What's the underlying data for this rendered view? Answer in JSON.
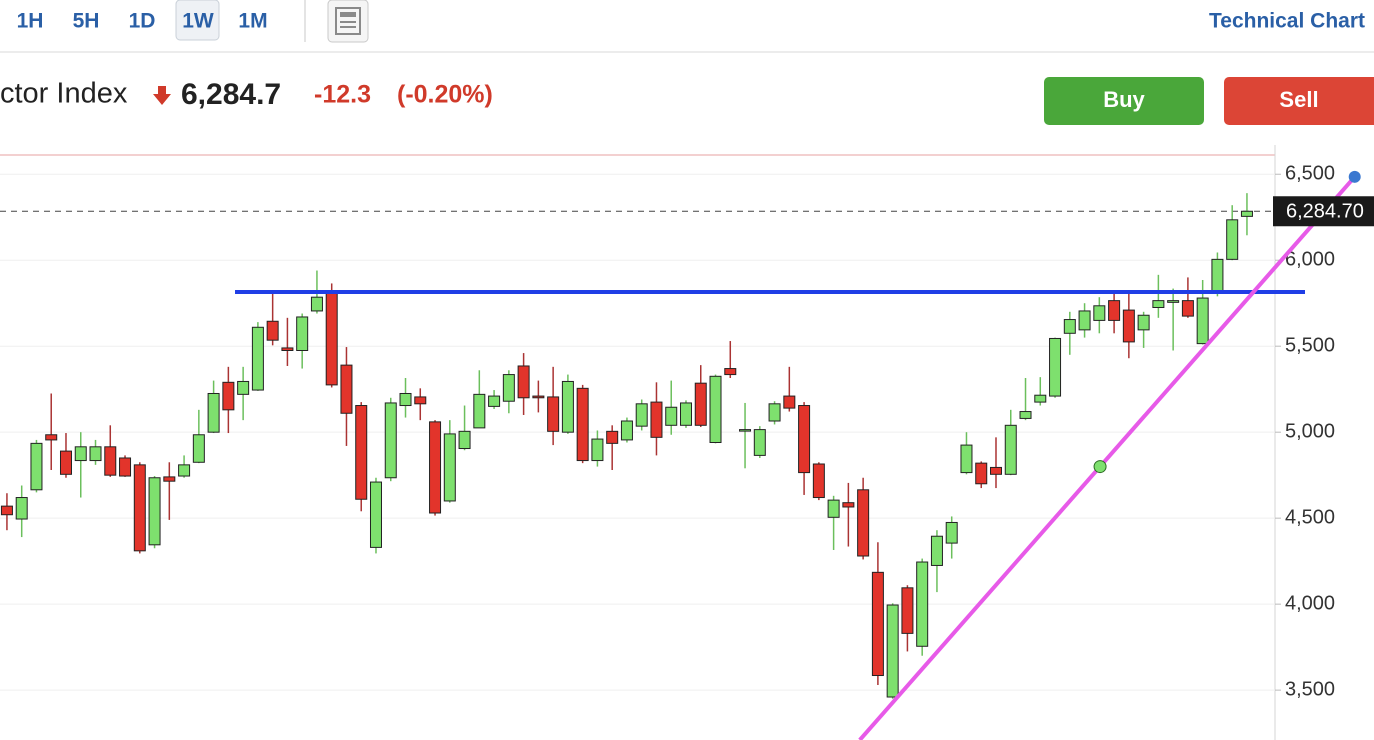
{
  "toolbar": {
    "tabs": [
      "1H",
      "5H",
      "1D",
      "1W",
      "1M"
    ],
    "active": "1W",
    "link": "Technical Chart"
  },
  "quote": {
    "name": "ctor Index",
    "price": "6,284.7",
    "change": "-12.3",
    "change_pct": "(-0.20%)"
  },
  "buttons": {
    "buy": "Buy",
    "sell": "Sell"
  },
  "chart_data": {
    "type": "candlestick",
    "up_color": "#7ee06e",
    "down_color": "#e2342b",
    "xlim": [
      -0.47,
      85.9
    ],
    "ylim": [
      3210,
      6670
    ],
    "yticks": [
      {
        "value": 3500,
        "label": "3,500"
      },
      {
        "value": 4000,
        "label": "4,000"
      },
      {
        "value": 4500,
        "label": "4,500"
      },
      {
        "value": 5000,
        "label": "5,000"
      },
      {
        "value": 5500,
        "label": "5,500"
      },
      {
        "value": 6000,
        "label": "6,000"
      },
      {
        "value": 6500,
        "label": "6,500"
      }
    ],
    "grid": true,
    "last_price": {
      "value": 6284.7,
      "label": "6,284.70"
    },
    "hline": {
      "value": 5815,
      "from": 15.45,
      "color": "#1f3ee6"
    },
    "trendline": {
      "color": "#e75ae8",
      "points": [
        {
          "x": 74.05,
          "y": 4800,
          "color": "#7ee06e"
        },
        {
          "x": 91.3,
          "y": 6485,
          "color": "#3a78d0"
        }
      ]
    },
    "ohlc": [
      [
        4570,
        4645,
        4430,
        4520
      ],
      [
        4495,
        4690,
        4390,
        4620
      ],
      [
        4665,
        4955,
        4650,
        4935
      ],
      [
        4985,
        5225,
        4780,
        4955
      ],
      [
        4890,
        4995,
        4735,
        4755
      ],
      [
        4835,
        5000,
        4620,
        4915
      ],
      [
        4835,
        4955,
        4810,
        4915
      ],
      [
        4915,
        5040,
        4740,
        4750
      ],
      [
        4850,
        4865,
        4740,
        4745
      ],
      [
        4810,
        4825,
        4295,
        4310
      ],
      [
        4345,
        4745,
        4325,
        4735
      ],
      [
        4740,
        4825,
        4490,
        4715
      ],
      [
        4745,
        4865,
        4735,
        4810
      ],
      [
        4825,
        5130,
        4820,
        4985
      ],
      [
        5000,
        5300,
        4995,
        5225
      ],
      [
        5290,
        5380,
        4995,
        5130
      ],
      [
        5220,
        5380,
        5070,
        5295
      ],
      [
        5245,
        5640,
        5240,
        5610
      ],
      [
        5645,
        5810,
        5505,
        5535
      ],
      [
        5490,
        5665,
        5385,
        5475
      ],
      [
        5475,
        5690,
        5370,
        5670
      ],
      [
        5705,
        5940,
        5690,
        5785
      ],
      [
        5815,
        5865,
        5260,
        5275
      ],
      [
        5390,
        5495,
        4920,
        5110
      ],
      [
        5155,
        5175,
        4540,
        4610
      ],
      [
        4330,
        4735,
        4295,
        4710
      ],
      [
        4735,
        5200,
        4715,
        5170
      ],
      [
        5155,
        5315,
        5085,
        5225
      ],
      [
        5205,
        5255,
        5070,
        5165
      ],
      [
        5060,
        5070,
        4515,
        4530
      ],
      [
        4600,
        5070,
        4590,
        4990
      ],
      [
        4905,
        5155,
        4895,
        5005
      ],
      [
        5025,
        5360,
        5025,
        5220
      ],
      [
        5150,
        5245,
        5135,
        5210
      ],
      [
        5180,
        5360,
        5110,
        5335
      ],
      [
        5385,
        5460,
        5100,
        5200
      ],
      [
        5210,
        5300,
        5115,
        5200
      ],
      [
        5205,
        5380,
        4925,
        5005
      ],
      [
        5000,
        5335,
        4990,
        5295
      ],
      [
        5255,
        5275,
        4820,
        4835
      ],
      [
        4835,
        5010,
        4800,
        4960
      ],
      [
        5005,
        5040,
        4780,
        4935
      ],
      [
        4955,
        5085,
        4940,
        5065
      ],
      [
        5035,
        5190,
        5010,
        5165
      ],
      [
        5175,
        5290,
        4865,
        4970
      ],
      [
        5040,
        5300,
        4985,
        5145
      ],
      [
        5040,
        5185,
        5025,
        5170
      ],
      [
        5285,
        5390,
        5030,
        5040
      ],
      [
        4940,
        5335,
        4935,
        5325
      ],
      [
        5370,
        5530,
        5315,
        5335
      ],
      [
        5010,
        5170,
        4790,
        5015
      ],
      [
        4865,
        5035,
        4850,
        5015
      ],
      [
        5065,
        5180,
        5045,
        5165
      ],
      [
        5210,
        5380,
        5120,
        5140
      ],
      [
        5155,
        5175,
        4635,
        4765
      ],
      [
        4815,
        4825,
        4605,
        4620
      ],
      [
        4505,
        4630,
        4315,
        4605
      ],
      [
        4590,
        4705,
        4335,
        4565
      ],
      [
        4665,
        4735,
        4260,
        4280
      ],
      [
        4185,
        4360,
        3530,
        3585
      ],
      [
        3460,
        4005,
        3450,
        3995
      ],
      [
        4095,
        4110,
        3725,
        3830
      ],
      [
        3755,
        4265,
        3700,
        4245
      ],
      [
        4225,
        4430,
        4070,
        4395
      ],
      [
        4355,
        4510,
        4265,
        4475
      ],
      [
        4765,
        5000,
        4755,
        4925
      ],
      [
        4820,
        4830,
        4675,
        4700
      ],
      [
        4795,
        4970,
        4675,
        4755
      ],
      [
        4755,
        5130,
        4750,
        5040
      ],
      [
        5080,
        5315,
        5070,
        5120
      ],
      [
        5175,
        5320,
        5155,
        5215
      ],
      [
        5210,
        5550,
        5200,
        5545
      ],
      [
        5575,
        5700,
        5450,
        5655
      ],
      [
        5595,
        5750,
        5550,
        5705
      ],
      [
        5650,
        5785,
        5575,
        5735
      ],
      [
        5765,
        5810,
        5575,
        5650
      ],
      [
        5710,
        5820,
        5430,
        5525
      ],
      [
        5595,
        5700,
        5490,
        5680
      ],
      [
        5725,
        5915,
        5665,
        5765
      ],
      [
        5755,
        5835,
        5475,
        5765
      ],
      [
        5765,
        5900,
        5665,
        5675
      ],
      [
        5515,
        5885,
        5510,
        5780
      ],
      [
        5810,
        6045,
        5790,
        6005
      ],
      [
        6005,
        6320,
        6000,
        6235
      ],
      [
        6255,
        6390,
        6145,
        6284.7
      ]
    ]
  }
}
